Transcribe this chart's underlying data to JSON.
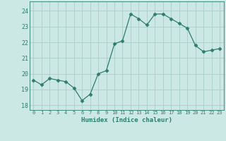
{
  "x": [
    0,
    1,
    2,
    3,
    4,
    5,
    6,
    7,
    8,
    9,
    10,
    11,
    12,
    13,
    14,
    15,
    16,
    17,
    18,
    19,
    20,
    21,
    22,
    23
  ],
  "y": [
    19.6,
    19.3,
    19.7,
    19.6,
    19.5,
    19.1,
    18.3,
    18.7,
    20.0,
    20.2,
    21.9,
    22.1,
    23.8,
    23.5,
    23.1,
    23.8,
    23.8,
    23.5,
    23.2,
    22.9,
    21.8,
    21.4,
    21.5,
    21.6
  ],
  "line_color": "#2e7d6e",
  "marker": "D",
  "marker_size": 2.5,
  "bg_color": "#cce8e4",
  "grid_color": "#aacdc8",
  "xlabel": "Humidex (Indice chaleur)",
  "ylim": [
    17.7,
    24.6
  ],
  "yticks": [
    18,
    19,
    20,
    21,
    22,
    23,
    24
  ],
  "xlim": [
    -0.5,
    23.5
  ],
  "tick_color": "#2e7d6e",
  "label_color": "#2e7d6e",
  "xtick_fontsize": 5.0,
  "ytick_fontsize": 6.0,
  "xlabel_fontsize": 6.5
}
